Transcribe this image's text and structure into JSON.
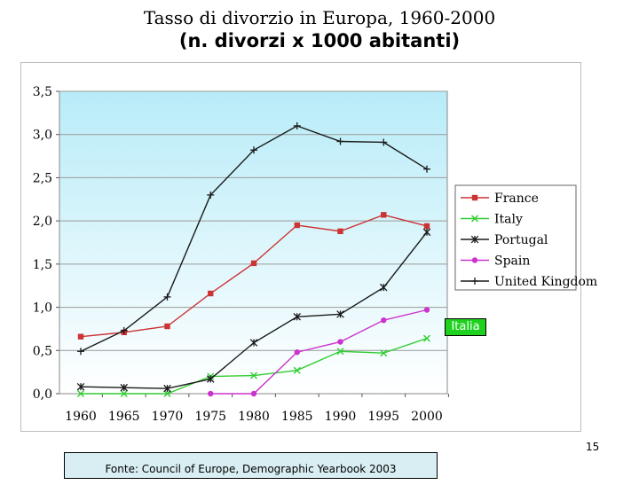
{
  "title": "Tasso di divorzio in Europa, 1960-2000",
  "subtitle": "(n. divorzi x 1000 abitanti)",
  "callout_label": "Italia",
  "page_number": "15",
  "source": "Fonte: Council of Europe, Demographic Yearbook 2003",
  "chart_data": {
    "type": "line",
    "title": "",
    "xlabel": "",
    "ylabel": "",
    "ylim": [
      0,
      3.5
    ],
    "grid": true,
    "legend_position": "right",
    "categories": [
      "1960",
      "1965",
      "1970",
      "1975",
      "1980",
      "1985",
      "1990",
      "1995",
      "2000"
    ],
    "yticks": [
      "0,0",
      "0,5",
      "1,0",
      "1,5",
      "2,0",
      "2,5",
      "3,0",
      "3,5"
    ],
    "series": [
      {
        "name": "France",
        "color": "#cc3333",
        "marker": "square",
        "values": [
          0.66,
          0.71,
          0.78,
          1.16,
          1.51,
          1.95,
          1.88,
          2.07,
          1.94
        ]
      },
      {
        "name": "Italy",
        "color": "#33cc33",
        "marker": "x",
        "values": [
          0.0,
          0.0,
          0.0,
          0.2,
          0.21,
          0.27,
          0.49,
          0.47,
          0.64
        ]
      },
      {
        "name": "Portugal",
        "color": "#1a1a1a",
        "marker": "star",
        "values": [
          0.08,
          0.07,
          0.06,
          0.17,
          0.59,
          0.89,
          0.92,
          1.23,
          1.87
        ]
      },
      {
        "name": "Spain",
        "color": "#cc33cc",
        "marker": "circle",
        "values": [
          null,
          null,
          null,
          0.0,
          0.0,
          0.48,
          0.6,
          0.85,
          0.97
        ]
      },
      {
        "name": "United Kingdom",
        "color": "#1a1a1a",
        "marker": "plus",
        "values": [
          0.49,
          0.73,
          1.12,
          2.3,
          2.82,
          3.1,
          2.92,
          2.91,
          2.6
        ]
      }
    ]
  }
}
